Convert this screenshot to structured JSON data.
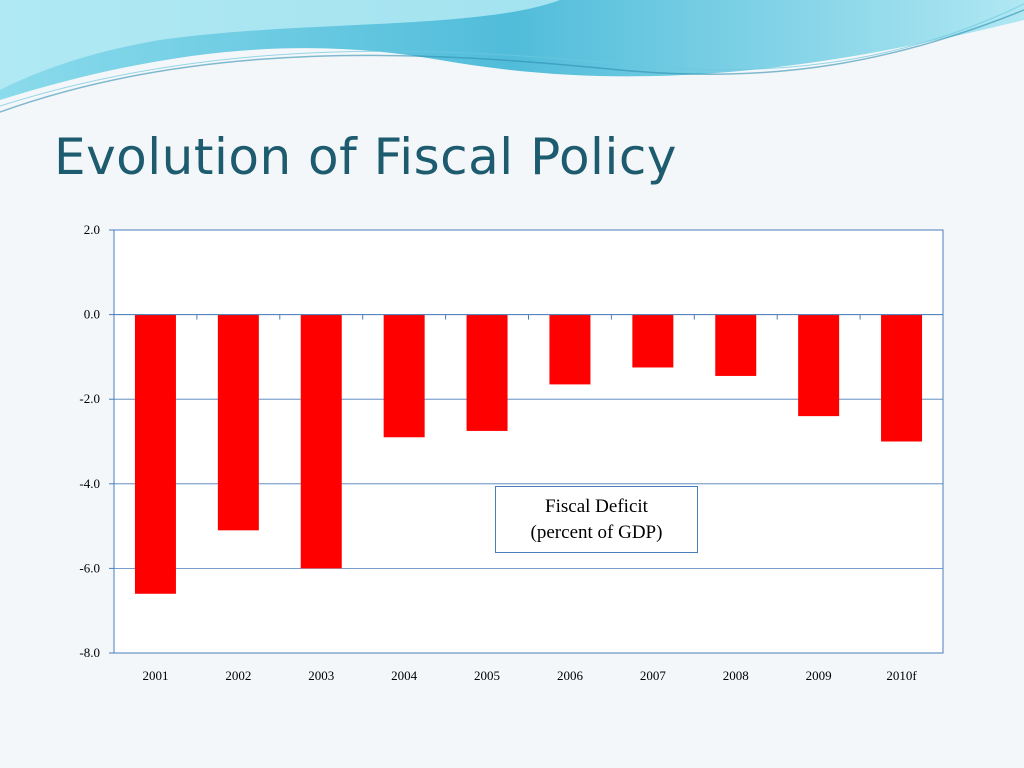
{
  "slide": {
    "title": "Evolution of Fiscal Policy"
  },
  "colors": {
    "title": "#1d5b6e",
    "bar": "#ff0000",
    "axis": "#4a7ebb",
    "background": "#f4f7fa",
    "wave": "#5ec9e0"
  },
  "chart_data": {
    "type": "bar",
    "categories": [
      "2001",
      "2002",
      "2003",
      "2004",
      "2005",
      "2006",
      "2007",
      "2008",
      "2009",
      "2010f"
    ],
    "series": [
      {
        "values": [
          -6.6,
          -5.1,
          -6.0,
          -2.9,
          -2.75,
          -1.65,
          -1.25,
          -1.45,
          -2.4,
          -3.0
        ]
      }
    ],
    "title": "",
    "xlabel": "",
    "ylabel": "",
    "ylim": [
      -8.0,
      2.0
    ],
    "yticks": [
      "2.0",
      "0.0",
      "-2.0",
      "-4.0",
      "-6.0",
      "-8.0"
    ],
    "grid": true,
    "annotation": {
      "line1": "Fiscal Deficit",
      "line2": "(percent of GDP)"
    }
  }
}
